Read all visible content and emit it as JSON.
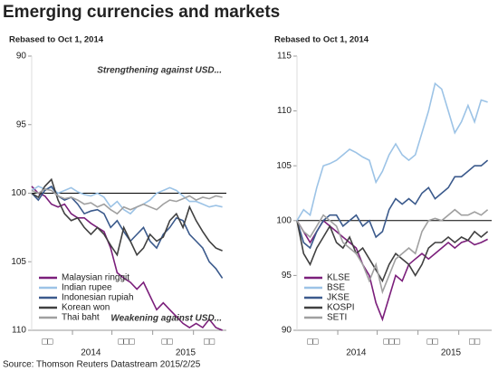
{
  "title": "Emerging currencies and markets",
  "source": "Source: Thomson Reuters Datastream  2015/2/25",
  "chart_data": [
    {
      "type": "line",
      "subtitle": "Rebased to Oct 1, 2014",
      "y_inverted": true,
      "ylim": [
        90,
        110
      ],
      "yticks": [
        90,
        95,
        100,
        105,
        110
      ],
      "xlim": [
        0,
        148
      ],
      "xticks": [
        {
          "value": 12,
          "label": "□□"
        },
        {
          "value": 72,
          "label": "□□□"
        },
        {
          "value": 103,
          "label": "□□"
        },
        {
          "value": 135,
          "label": "□□"
        }
      ],
      "x_minor_ticks": [
        31,
        61,
        92,
        123
      ],
      "x_year_labels": [
        {
          "value": 45,
          "label": "2014"
        },
        {
          "value": 117,
          "label": "2015"
        }
      ],
      "reference_line": 100,
      "grid": false,
      "legend": "lower left",
      "annotations": [
        "Strengthening against USD...",
        "Weakening against USD..."
      ],
      "x": [
        0,
        5,
        10,
        15,
        20,
        25,
        30,
        35,
        40,
        45,
        50,
        55,
        60,
        65,
        70,
        75,
        80,
        85,
        90,
        95,
        100,
        105,
        110,
        115,
        120,
        125,
        130,
        135,
        140,
        145
      ],
      "series": [
        {
          "name": "Malaysian ringgit",
          "color": "#7b1f7b",
          "values": [
            99.5,
            100,
            100.2,
            100.8,
            101,
            100.8,
            101.5,
            101.8,
            101.8,
            102.2,
            102.5,
            102.8,
            104,
            105.8,
            106.2,
            106.5,
            107,
            106.5,
            107.5,
            108.5,
            108,
            108.5,
            109,
            109.5,
            109.8,
            109.5,
            109.8,
            109.2,
            109.8,
            110
          ]
        },
        {
          "name": "Indian rupee",
          "color": "#9cc3e6",
          "values": [
            99.8,
            99.5,
            99.7,
            99.6,
            100,
            99.8,
            99.6,
            99.9,
            100.1,
            100.2,
            100,
            100.3,
            101,
            100.6,
            101.2,
            101.5,
            101,
            100.8,
            100.5,
            100,
            99.8,
            99.6,
            99.8,
            100.2,
            100.6,
            100.6,
            100.8,
            101,
            100.9,
            101
          ]
        },
        {
          "name": "Indonesian rupiah",
          "color": "#3b5a8c",
          "values": [
            100,
            100.5,
            99.8,
            99.5,
            100.2,
            100.5,
            100.3,
            100.8,
            101.5,
            101.3,
            101.2,
            101.5,
            102.5,
            102,
            102.8,
            103.5,
            103,
            102.5,
            103.5,
            104,
            103,
            102.5,
            101.8,
            102,
            103,
            103.5,
            104,
            105,
            105.5,
            106.2
          ]
        },
        {
          "name": "Korean won",
          "color": "#404040",
          "values": [
            100,
            100.3,
            99.5,
            99,
            100.5,
            101.5,
            102,
            101.8,
            102.5,
            103,
            102.5,
            103,
            103.8,
            104.5,
            102.5,
            103.5,
            104.5,
            104,
            103,
            103.5,
            103.2,
            102,
            101.5,
            102.5,
            101,
            102,
            102.8,
            103.5,
            104,
            104.2
          ]
        },
        {
          "name": "Thai baht",
          "color": "#a0a0a0",
          "values": [
            99.8,
            100,
            99.7,
            99.8,
            100.2,
            100.4,
            100.3,
            100.5,
            100.8,
            100.7,
            101,
            100.8,
            101.2,
            101.5,
            101,
            101.2,
            101,
            100.8,
            101,
            101.2,
            100.8,
            100.5,
            100.6,
            100.4,
            100.2,
            100.5,
            100.3,
            100.4,
            100.2,
            100.3
          ]
        }
      ]
    },
    {
      "type": "line",
      "subtitle": "Rebased to Oct 1, 2014",
      "y_inverted": false,
      "ylim": [
        90,
        115
      ],
      "yticks": [
        90,
        95,
        100,
        105,
        110,
        115
      ],
      "xlim": [
        0,
        148
      ],
      "xticks": [
        {
          "value": 12,
          "label": "□□"
        },
        {
          "value": 72,
          "label": "□□□"
        },
        {
          "value": 103,
          "label": "□□"
        },
        {
          "value": 135,
          "label": "□□"
        }
      ],
      "x_minor_ticks": [
        31,
        61,
        92,
        123
      ],
      "x_year_labels": [
        {
          "value": 45,
          "label": "2014"
        },
        {
          "value": 117,
          "label": "2015"
        }
      ],
      "reference_line": 100,
      "grid": false,
      "legend": "lower left",
      "x": [
        0,
        5,
        10,
        15,
        20,
        25,
        30,
        35,
        40,
        45,
        50,
        55,
        60,
        65,
        70,
        75,
        80,
        85,
        90,
        95,
        100,
        105,
        110,
        115,
        120,
        125,
        130,
        135,
        140,
        145
      ],
      "series": [
        {
          "name": "KLSE",
          "color": "#7b1f7b",
          "values": [
            100,
            99,
            98,
            99,
            100,
            99.5,
            99,
            98.5,
            98,
            97.5,
            96,
            95,
            92.5,
            91,
            93,
            95,
            94.5,
            96,
            96.5,
            97,
            96.5,
            97,
            97.5,
            98,
            97.5,
            98,
            98.2,
            97.8,
            98,
            98.3
          ]
        },
        {
          "name": "BSE",
          "color": "#9cc3e6",
          "values": [
            100,
            101,
            100.5,
            103,
            105,
            105.2,
            105.5,
            106,
            106.5,
            106.2,
            105.8,
            105.5,
            103.5,
            104.5,
            106,
            107,
            106,
            105.5,
            106,
            108,
            110,
            112.5,
            112,
            110,
            108,
            109,
            110.5,
            109,
            111,
            110.8
          ]
        },
        {
          "name": "JKSE",
          "color": "#3b5a8c",
          "values": [
            100,
            98,
            97.5,
            99,
            100,
            100.5,
            100.5,
            99.5,
            100,
            100.5,
            99.5,
            100,
            98.5,
            99,
            101,
            102,
            101.5,
            102,
            101.5,
            102.5,
            103,
            102,
            102.5,
            103,
            104,
            104,
            104.5,
            105,
            105,
            105.5
          ]
        },
        {
          "name": "KOSPI",
          "color": "#404040",
          "values": [
            100,
            97,
            96,
            97.5,
            98.5,
            99.5,
            98,
            97.5,
            98.5,
            97,
            97.5,
            96.5,
            95.5,
            94.5,
            96,
            97,
            96.5,
            96,
            95,
            96,
            97.5,
            98,
            98,
            98.5,
            98,
            98.5,
            98.2,
            99,
            98.5,
            99
          ]
        },
        {
          "name": "SETI",
          "color": "#a0a0a0",
          "values": [
            100,
            99,
            98.5,
            99.5,
            100.5,
            100,
            99.5,
            98,
            97.5,
            97,
            96,
            94.5,
            96,
            93.5,
            95,
            96.5,
            97,
            97.5,
            97,
            99,
            100,
            100.2,
            100,
            100.5,
            101,
            100.5,
            100.5,
            100.8,
            100.5,
            101
          ]
        }
      ]
    }
  ]
}
